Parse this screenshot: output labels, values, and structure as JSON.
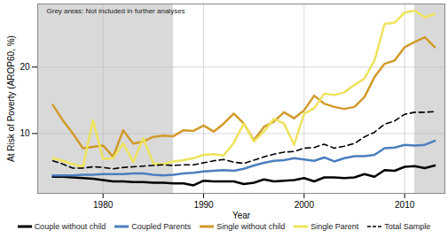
{
  "chart_data": {
    "type": "line",
    "x_label": "Year",
    "y_label": "At Risk of Poverty (AROP60, %)",
    "annotation": "Grey areas: Not included in further analyses",
    "grey_areas": [
      {
        "from": 1973.5,
        "to": 1987
      },
      {
        "from": 2011,
        "to": 2014
      }
    ],
    "xlim": [
      1973.5,
      2014
    ],
    "xticks": [
      1980,
      1990,
      2000,
      2010
    ],
    "ylim": [
      1,
      29.5
    ],
    "yticks": [
      10,
      20
    ],
    "grid": true,
    "legend": "bottom",
    "x": [
      1975,
      1976,
      1977,
      1978,
      1979,
      1980,
      1981,
      1982,
      1983,
      1984,
      1985,
      1986,
      1987,
      1988,
      1989,
      1990,
      1991,
      1992,
      1993,
      1994,
      1995,
      1996,
      1997,
      1998,
      1999,
      2000,
      2001,
      2002,
      2003,
      2004,
      2005,
      2006,
      2007,
      2008,
      2009,
      2010,
      2011,
      2012,
      2013
    ],
    "series": [
      {
        "name": "Couple without child",
        "color": "#000000",
        "line_style": "solid",
        "values": [
          3.5,
          3.5,
          3.4,
          3.3,
          3.2,
          3.0,
          2.8,
          2.8,
          2.7,
          2.7,
          2.6,
          2.6,
          2.5,
          2.5,
          2.2,
          2.9,
          2.8,
          2.8,
          2.8,
          2.4,
          2.6,
          3.1,
          2.8,
          2.9,
          3.0,
          3.3,
          2.8,
          3.4,
          3.4,
          3.3,
          3.4,
          3.9,
          3.5,
          4.5,
          4.4,
          5.0,
          5.1,
          4.8,
          5.2
        ]
      },
      {
        "name": "Coupled Parents",
        "color": "#4a7fbf",
        "line_style": "solid",
        "values": [
          3.7,
          3.7,
          3.7,
          3.8,
          3.8,
          3.9,
          3.9,
          3.9,
          4.0,
          4.0,
          3.8,
          3.7,
          3.8,
          4.0,
          4.1,
          4.3,
          4.4,
          4.5,
          4.4,
          4.7,
          5.2,
          5.6,
          5.9,
          6.0,
          6.3,
          6.1,
          5.9,
          6.4,
          5.8,
          6.3,
          6.6,
          6.6,
          6.8,
          7.8,
          7.9,
          8.3,
          8.2,
          8.3,
          8.9
        ]
      },
      {
        "name": "Single without child",
        "color": "#d19a2a",
        "line_style": "solid",
        "values": [
          14.3,
          12.0,
          10.0,
          7.8,
          8.0,
          8.2,
          6.5,
          10.5,
          8.5,
          8.8,
          9.5,
          9.7,
          9.6,
          10.5,
          10.4,
          11.2,
          10.3,
          11.5,
          13.0,
          11.5,
          9.0,
          11.0,
          11.8,
          13.2,
          12.3,
          13.5,
          15.7,
          14.5,
          14.0,
          13.7,
          14.0,
          15.5,
          18.5,
          20.5,
          21.0,
          23.0,
          23.8,
          24.5,
          23.0
        ]
      },
      {
        "name": "Single Parent",
        "color": "#eee35c",
        "line_style": "solid",
        "values": [
          6.3,
          5.9,
          5.4,
          5.0,
          12.0,
          6.2,
          6.3,
          8.5,
          5.7,
          9.3,
          5.5,
          5.4,
          5.8,
          6.0,
          6.3,
          6.8,
          6.9,
          6.7,
          8.6,
          11.5,
          8.8,
          10.3,
          12.2,
          11.5,
          8.3,
          13.0,
          13.8,
          16.0,
          15.8,
          16.2,
          17.3,
          18.3,
          21.0,
          26.5,
          26.7,
          28.2,
          28.5,
          27.5,
          28.0
        ]
      },
      {
        "name": "Total Sample",
        "color": "#000000",
        "line_style": "dashed",
        "values": [
          5.9,
          5.4,
          4.8,
          4.8,
          5.0,
          4.9,
          4.7,
          4.9,
          5.0,
          5.1,
          5.2,
          5.3,
          5.2,
          5.3,
          5.3,
          5.6,
          5.9,
          6.1,
          5.7,
          5.5,
          6.0,
          6.5,
          6.9,
          7.2,
          7.3,
          7.8,
          7.9,
          8.4,
          7.8,
          8.1,
          8.5,
          9.5,
          10.2,
          11.4,
          11.9,
          12.9,
          13.2,
          13.2,
          13.3
        ]
      }
    ]
  }
}
